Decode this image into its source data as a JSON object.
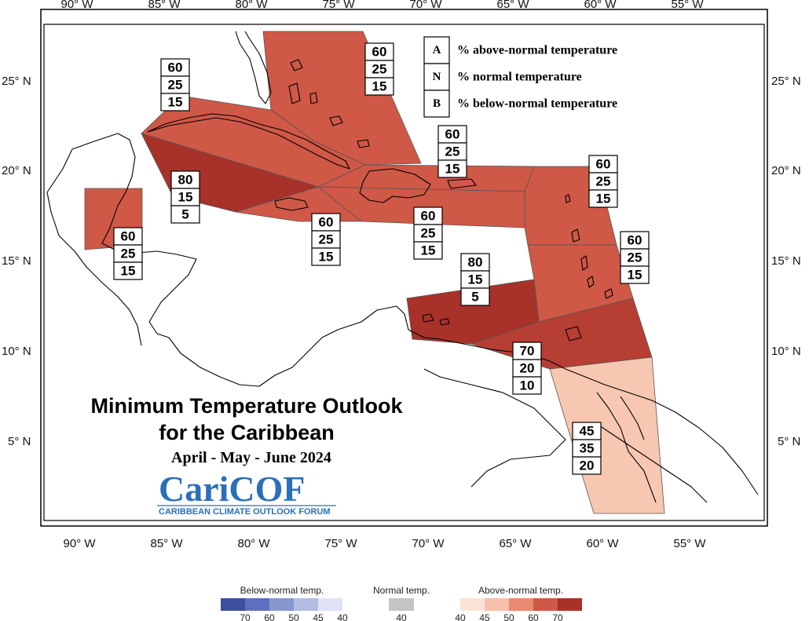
{
  "axes": {
    "lon_ticks": [
      "90° W",
      "85° W",
      "80° W",
      "75° W",
      "70° W",
      "65° W",
      "60° W",
      "55° W"
    ],
    "lat_ticks": [
      "25° N",
      "20° N",
      "15° N",
      "10° N",
      "5° N"
    ]
  },
  "key": {
    "items": [
      {
        "letter": "A",
        "text": "% above-normal temperature"
      },
      {
        "letter": "N",
        "text": "% normal temperature"
      },
      {
        "letter": "B",
        "text": "% below-normal temperature"
      }
    ]
  },
  "title": {
    "line1": "Minimum Temperature Outlook",
    "line2": "for the Caribbean",
    "season": "April - May - June 2024"
  },
  "logo": {
    "name": "CariCOF",
    "subtitle": "CARIBBEAN CLIMATE OUTLOOK FORUM"
  },
  "regions": [
    {
      "name": "bahamas",
      "A": "60",
      "N": "25",
      "B": "15",
      "color": "#cf5846"
    },
    {
      "name": "cuba-west",
      "A": "60",
      "N": "25",
      "B": "15",
      "color": "#cf5846"
    },
    {
      "name": "cayman-jamaica",
      "A": "80",
      "N": "15",
      "B": "5",
      "color": "#a8312a"
    },
    {
      "name": "jamaica-haiti-south",
      "A": "60",
      "N": "25",
      "B": "15",
      "color": "#cf5846"
    },
    {
      "name": "hispaniola-puerto-rico",
      "A": "60",
      "N": "25",
      "B": "15",
      "color": "#cf5846"
    },
    {
      "name": "caribbean-south-hispaniola",
      "A": "60",
      "N": "25",
      "B": "15",
      "color": "#cf5846"
    },
    {
      "name": "belize",
      "A": "60",
      "N": "25",
      "B": "15",
      "color": "#cf5846"
    },
    {
      "name": "leeward-islands",
      "A": "60",
      "N": "25",
      "B": "15",
      "color": "#cf5846"
    },
    {
      "name": "windward-islands",
      "A": "60",
      "N": "25",
      "B": "15",
      "color": "#cf5846"
    },
    {
      "name": "abc-islands",
      "A": "80",
      "N": "15",
      "B": "5",
      "color": "#a8312a"
    },
    {
      "name": "trinidad-tobago",
      "A": "70",
      "N": "20",
      "B": "10",
      "color": "#b63e33"
    },
    {
      "name": "guianas",
      "A": "45",
      "N": "35",
      "B": "20",
      "color": "#f7c7b2"
    }
  ],
  "legend": {
    "below": {
      "title": "Below-normal temp.",
      "ticks": [
        "70",
        "60",
        "50",
        "45",
        "40"
      ],
      "colors": [
        "#3b4f9c",
        "#5d6fbd",
        "#8896cf",
        "#b3bce2",
        "#dfe3f4"
      ]
    },
    "normal": {
      "title": "Normal temp.",
      "ticks": [
        "40"
      ],
      "colors": [
        "#c4c4c4"
      ]
    },
    "above": {
      "title": "Above-normal temp.",
      "ticks": [
        "40",
        "45",
        "50",
        "60",
        "70"
      ],
      "colors": [
        "#fbe3d8",
        "#f6c0aa",
        "#e88a70",
        "#cf5846",
        "#a8312a"
      ]
    }
  }
}
